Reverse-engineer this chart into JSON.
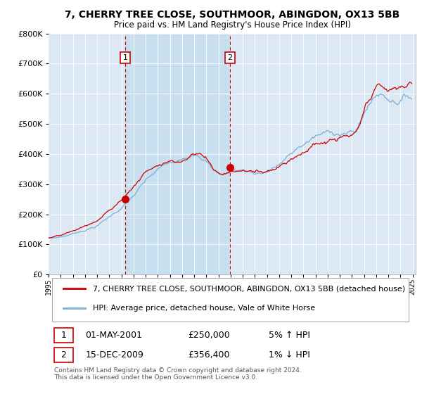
{
  "title": "7, CHERRY TREE CLOSE, SOUTHMOOR, ABINGDON, OX13 5BB",
  "subtitle": "Price paid vs. HM Land Registry's House Price Index (HPI)",
  "ylim": [
    0,
    800000
  ],
  "xlim_start": 1995.0,
  "xlim_end": 2025.25,
  "hpi_color": "#7bafd4",
  "price_color": "#cc0000",
  "marker_color": "#cc0000",
  "vline_color": "#cc0000",
  "bg_color": "#dce9f5",
  "shade_color": "#c8dff0",
  "legend_label_red": "7, CHERRY TREE CLOSE, SOUTHMOOR, ABINGDON, OX13 5BB (detached house)",
  "legend_label_blue": "HPI: Average price, detached house, Vale of White Horse",
  "transaction_1_date": "01-MAY-2001",
  "transaction_1_price": "£250,000",
  "transaction_1_hpi": "5% ↑ HPI",
  "transaction_1_year": 2001.33,
  "transaction_1_value": 250000,
  "transaction_2_date": "15-DEC-2009",
  "transaction_2_price": "£356,400",
  "transaction_2_hpi": "1% ↓ HPI",
  "transaction_2_year": 2009.96,
  "transaction_2_value": 356400,
  "footer": "Contains HM Land Registry data © Crown copyright and database right 2024.\nThis data is licensed under the Open Government Licence v3.0."
}
